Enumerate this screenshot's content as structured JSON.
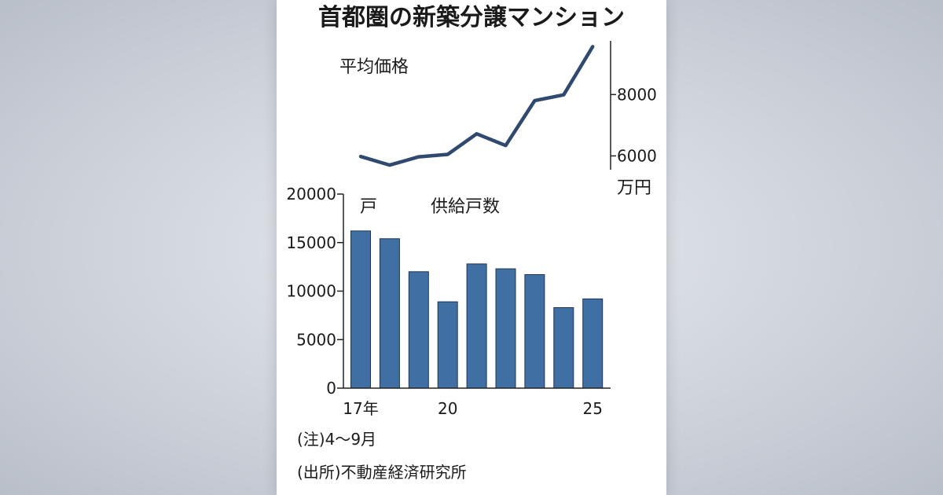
{
  "chart_data": [
    {
      "type": "line",
      "title": "首都圏の新築分譲マンション",
      "series": [
        {
          "name": "平均価格",
          "values": [
            5980,
            5700,
            5970,
            6050,
            6720,
            6340,
            7800,
            7990,
            9560
          ]
        }
      ],
      "x": [
        2017,
        2018,
        2019,
        2020,
        2021,
        2022,
        2023,
        2024,
        2025
      ],
      "ylabel": "万円",
      "yticks": [
        6000,
        8000
      ],
      "ylim": [
        5550,
        9750
      ],
      "axis_position": "right",
      "color": "#2f4a6e"
    },
    {
      "type": "bar",
      "series": [
        {
          "name": "供給戸数",
          "values": [
            16200,
            15400,
            12000,
            8900,
            12800,
            12300,
            11700,
            8300,
            9200
          ]
        }
      ],
      "x": [
        2017,
        2018,
        2019,
        2020,
        2021,
        2022,
        2023,
        2024,
        2025
      ],
      "xtick_labels": [
        "17年",
        "",
        "",
        "20",
        "",
        "",
        "",
        "",
        "25"
      ],
      "ylabel": "戸",
      "yticks": [
        0,
        5000,
        10000,
        15000,
        20000
      ],
      "ylim": [
        0,
        20000
      ],
      "bar_color": "#3f6fa3"
    }
  ],
  "notes": [
    "(注)4～9月",
    "(出所)不動産経済研究所"
  ]
}
